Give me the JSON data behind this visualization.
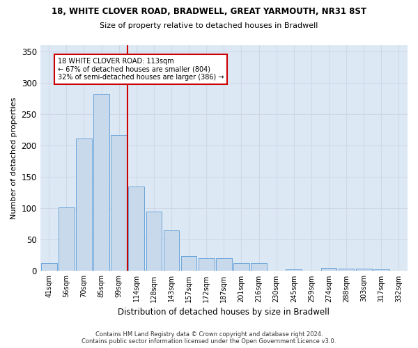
{
  "title1": "18, WHITE CLOVER ROAD, BRADWELL, GREAT YARMOUTH, NR31 8ST",
  "title2": "Size of property relative to detached houses in Bradwell",
  "xlabel": "Distribution of detached houses by size in Bradwell",
  "ylabel": "Number of detached properties",
  "categories": [
    "41sqm",
    "56sqm",
    "70sqm",
    "85sqm",
    "99sqm",
    "114sqm",
    "128sqm",
    "143sqm",
    "157sqm",
    "172sqm",
    "187sqm",
    "201sqm",
    "216sqm",
    "230sqm",
    "245sqm",
    "259sqm",
    "274sqm",
    "288sqm",
    "303sqm",
    "317sqm",
    "332sqm"
  ],
  "values": [
    13,
    102,
    211,
    282,
    217,
    135,
    95,
    65,
    24,
    21,
    21,
    13,
    13,
    0,
    3,
    0,
    5,
    4,
    4,
    3,
    0
  ],
  "bar_color": "#c9d9ec",
  "bar_edge_color": "#5b9bd5",
  "grid_color": "#d0d8e8",
  "background_color": "#dde8f5",
  "red_line_index": 5,
  "annotation_line1": "18 WHITE CLOVER ROAD: 113sqm",
  "annotation_line2": "← 67% of detached houses are smaller (804)",
  "annotation_line3": "32% of semi-detached houses are larger (386) →",
  "annotation_box_color": "#ffffff",
  "annotation_box_edge": "#cc0000",
  "red_line_color": "#cc0000",
  "footer1": "Contains HM Land Registry data © Crown copyright and database right 2024.",
  "footer2": "Contains public sector information licensed under the Open Government Licence v3.0.",
  "ylim": [
    0,
    360
  ],
  "yticks": [
    0,
    50,
    100,
    150,
    200,
    250,
    300,
    350
  ]
}
